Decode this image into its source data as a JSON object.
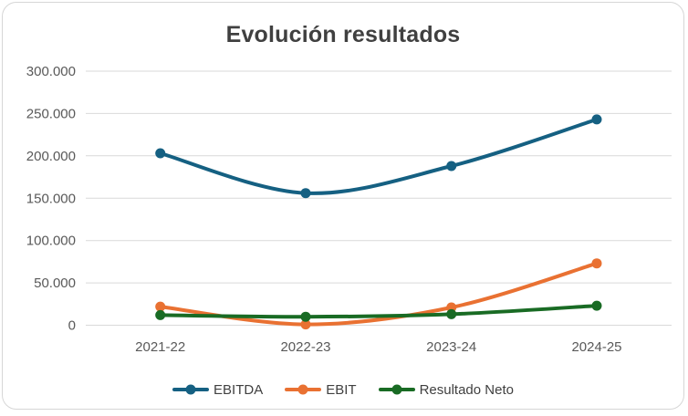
{
  "chart_data": {
    "type": "line",
    "title": "Evolución resultados",
    "categories": [
      "2021-22",
      "2022-23",
      "2023-24",
      "2024-25"
    ],
    "series": [
      {
        "name": "EBITDA",
        "color": "#156082",
        "values": [
          203000,
          156000,
          188000,
          243000
        ]
      },
      {
        "name": "EBIT",
        "color": "#E97132",
        "values": [
          22000,
          1000,
          21000,
          73000
        ]
      },
      {
        "name": "Resultado Neto",
        "color": "#196B24",
        "values": [
          12000,
          10000,
          13000,
          23000
        ]
      }
    ],
    "ylim": [
      0,
      300000
    ],
    "ytick_interval": 50000,
    "ytick_labels": [
      "0",
      "50.000",
      "100.000",
      "150.000",
      "200.000",
      "250.000",
      "300.000"
    ],
    "xlabel": "",
    "ylabel": "",
    "grid": true,
    "gridline_color": "#d9d9d9",
    "smooth_lines": true,
    "markers": true,
    "legend_position": "bottom",
    "text_color": "#595959",
    "title_color": "#404040"
  }
}
